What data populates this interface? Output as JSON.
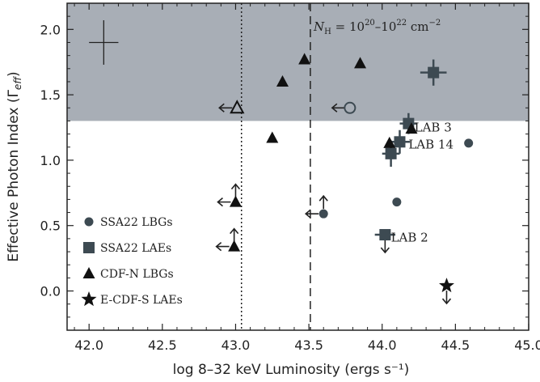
{
  "chart_data": {
    "type": "scatter",
    "xlabel": "log 8–32 keV Luminosity (ergs s⁻¹)",
    "ylabel": "Effective Photon Index (Γ",
    "ylabel_sub": "eff",
    "ylabel_close": ")",
    "xlim": [
      41.85,
      45.0
    ],
    "ylim": [
      -0.3,
      2.2
    ],
    "xticks": [
      42.0,
      42.5,
      43.0,
      43.5,
      44.0,
      44.5,
      45.0
    ],
    "xtick_labels": [
      "42.0",
      "42.5",
      "43.0",
      "43.5",
      "44.0",
      "44.5",
      "45.0"
    ],
    "yticks": [
      0.0,
      0.5,
      1.0,
      1.5,
      2.0
    ],
    "ytick_labels": [
      "0.0",
      "0.5",
      "1.0",
      "1.5",
      "2.0"
    ],
    "shaded_region": {
      "y_from": 1.3,
      "y_to": 2.2,
      "color": "#a8aeb6"
    },
    "vertical_lines": [
      {
        "x": 43.04,
        "style": "dotted"
      },
      {
        "x": 43.51,
        "style": "dashed"
      }
    ],
    "annotation": {
      "N": "N",
      "H": "H",
      "rest": " = 10",
      "exp1": "20",
      "mid": "–10",
      "exp2": "22",
      "unit": " cm",
      "exp3": "−2"
    },
    "typical_error": {
      "x": 42.1,
      "y": 1.9,
      "xerr": 0.1,
      "yerr": 0.17
    },
    "series": [
      {
        "name": "SSA22 LBGs",
        "marker": "circle",
        "color": "#3d4a52",
        "points": [
          {
            "x": 44.59,
            "y": 1.13
          },
          {
            "x": 44.1,
            "y": 0.68
          },
          {
            "x": 43.6,
            "y": 0.59,
            "upper_x": true,
            "lower_y": true
          }
        ]
      },
      {
        "name": "SSA22 LAEs",
        "marker": "square",
        "color": "#3d4a52",
        "points": [
          {
            "x": 44.35,
            "y": 1.67,
            "xerr": 0.09,
            "yerr": 0.1
          },
          {
            "x": 44.18,
            "y": 1.28,
            "xerr": 0.06,
            "yerr": 0.08
          },
          {
            "x": 44.12,
            "y": 1.14,
            "xerr": 0.07,
            "yerr": 0.09
          },
          {
            "x": 44.06,
            "y": 1.05,
            "xerr": 0.06,
            "yerr": 0.1
          },
          {
            "x": 44.02,
            "y": 0.43,
            "xerr": 0.07,
            "upper_y": true
          }
        ]
      },
      {
        "name": "CDF-N LBGs",
        "marker": "triangle",
        "color": "#111111",
        "points": [
          {
            "x": 43.47,
            "y": 1.77
          },
          {
            "x": 43.85,
            "y": 1.74
          },
          {
            "x": 43.32,
            "y": 1.6
          },
          {
            "x": 43.25,
            "y": 1.17
          },
          {
            "x": 44.2,
            "y": 1.24
          },
          {
            "x": 44.05,
            "y": 1.13
          },
          {
            "x": 43.0,
            "y": 0.68,
            "upper_x": true,
            "lower_y": true
          },
          {
            "x": 42.99,
            "y": 0.34,
            "upper_x": true,
            "lower_y": true
          }
        ]
      },
      {
        "name": "CDF-N LBGs (open)",
        "marker": "triangle-open",
        "color": "#111111",
        "points": [
          {
            "x": 43.01,
            "y": 1.4,
            "upper_x": true
          }
        ]
      },
      {
        "name": "SSA22 LBGs (open)",
        "marker": "circle-open",
        "color": "#3d4a52",
        "points": [
          {
            "x": 43.78,
            "y": 1.4,
            "upper_x": true
          }
        ]
      },
      {
        "name": "E-CDF-S LAEs",
        "marker": "star",
        "color": "#111111",
        "points": [
          {
            "x": 44.44,
            "y": 0.04,
            "upper_y": true
          }
        ]
      }
    ],
    "point_labels": [
      {
        "text": "LAB 3",
        "x": 44.22,
        "y": 1.25
      },
      {
        "text": "LAB 14",
        "x": 44.18,
        "y": 1.12
      },
      {
        "text": "LAB 2",
        "x": 44.06,
        "y": 0.41
      }
    ],
    "legend": {
      "placement": "lower-left",
      "entries": [
        {
          "label": "SSA22 LBGs",
          "marker": "circle",
          "color": "#3d4a52"
        },
        {
          "label": "SSA22 LAEs",
          "marker": "square",
          "color": "#3d4a52"
        },
        {
          "label": "CDF-N LBGs",
          "marker": "triangle",
          "color": "#111111"
        },
        {
          "label": "E-CDF-S LAEs",
          "marker": "star",
          "color": "#111111"
        }
      ]
    }
  }
}
